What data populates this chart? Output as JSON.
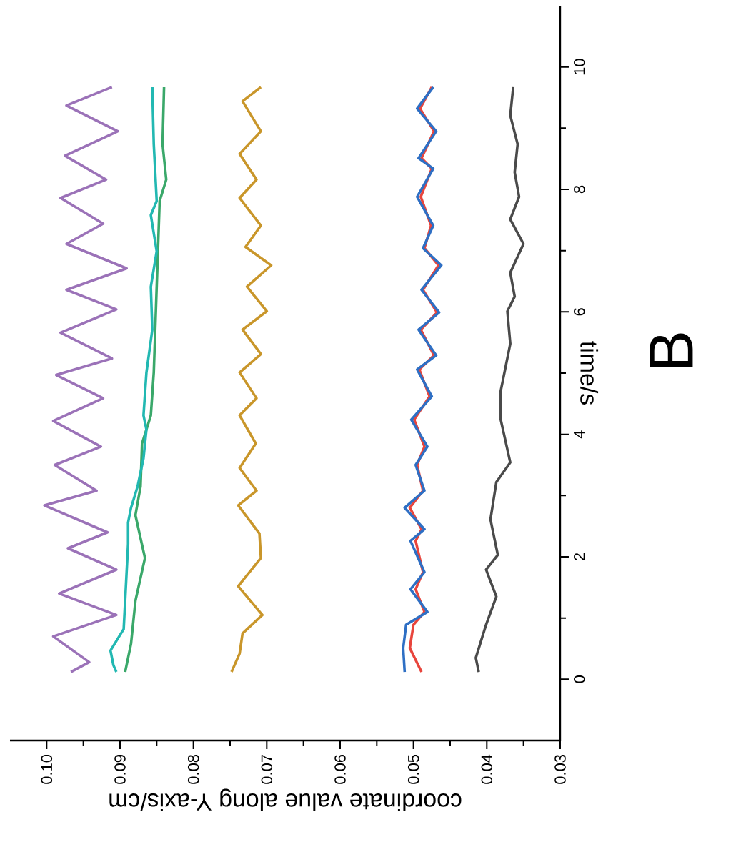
{
  "chart_data": {
    "type": "line",
    "xlabel": "coordinate value along Y-axis/cm",
    "ylabel": "time/s",
    "annotations": [
      "B"
    ],
    "ylim": [
      -1,
      11
    ],
    "yticks": [
      0,
      2,
      4,
      6,
      8,
      10
    ],
    "xlim": [
      0.105,
      0.03
    ],
    "xticks": [
      {
        "value": 0.03,
        "label": "0.03"
      },
      {
        "value": 0.04,
        "label": "0.04"
      },
      {
        "value": 0.05,
        "label": "0.05"
      },
      {
        "value": 0.06,
        "label": "0.06"
      },
      {
        "value": 0.07,
        "label": "0.07"
      },
      {
        "value": 0.08,
        "label": "0.08"
      },
      {
        "value": 0.09,
        "label": "0.09"
      },
      {
        "value": 0.1,
        "label": "0.10"
      }
    ],
    "series": [
      {
        "color": "#9b72b8",
        "values": [
          0.12,
          0.28,
          0.7,
          1.05,
          1.4,
          1.79,
          2.14,
          2.4,
          2.84,
          3.08,
          3.5,
          3.8,
          4.22,
          4.59,
          4.97,
          5.24,
          5.66,
          6.04,
          6.36,
          6.71,
          7.11,
          7.44,
          7.86,
          8.16,
          8.55,
          8.95,
          9.37,
          9.67
        ],
        "x": [
          0.0967,
          0.0942,
          0.0991,
          0.0905,
          0.0983,
          0.0905,
          0.0971,
          0.0917,
          0.1003,
          0.0932,
          0.0989,
          0.0926,
          0.0991,
          0.0923,
          0.0987,
          0.0911,
          0.0981,
          0.0905,
          0.0973,
          0.0891,
          0.0973,
          0.0923,
          0.0981,
          0.0919,
          0.0975,
          0.0903,
          0.0973,
          0.0911
        ]
      },
      {
        "color": "#3aa86a",
        "values": [
          0.12,
          0.58,
          1.28,
          1.98,
          2.68,
          3.15,
          3.85,
          4.31,
          5.01,
          5.71,
          6.41,
          7.11,
          7.81,
          8.16,
          8.74,
          9.67
        ],
        "x": [
          0.0893,
          0.0885,
          0.0879,
          0.0866,
          0.0879,
          0.0872,
          0.087,
          0.0858,
          0.0854,
          0.0852,
          0.085,
          0.0848,
          0.0846,
          0.0837,
          0.0842,
          0.084
        ]
      },
      {
        "color": "#22b8b2",
        "values": [
          0.12,
          0.23,
          0.47,
          0.82,
          1.28,
          1.75,
          2.21,
          2.56,
          2.8,
          3.15,
          3.61,
          4.08,
          4.31,
          5.01,
          5.71,
          6.41,
          6.99,
          7.58,
          7.81,
          8.74,
          9.67
        ],
        "x": [
          0.0905,
          0.0909,
          0.0913,
          0.0895,
          0.0893,
          0.0891,
          0.0889,
          0.0889,
          0.0885,
          0.0876,
          0.0868,
          0.0864,
          0.0868,
          0.0864,
          0.0856,
          0.0858,
          0.085,
          0.0858,
          0.085,
          0.0854,
          0.0856
        ]
      },
      {
        "color": "#c9962a",
        "values": [
          0.12,
          0.42,
          0.75,
          1.05,
          1.52,
          1.98,
          2.38,
          2.84,
          3.08,
          3.45,
          3.85,
          4.31,
          4.59,
          5.01,
          5.31,
          5.71,
          6.01,
          6.41,
          6.76,
          7.06,
          7.41,
          7.86,
          8.16,
          8.58,
          8.95,
          9.44,
          9.67
        ],
        "x": [
          0.0748,
          0.0737,
          0.0733,
          0.0706,
          0.0739,
          0.0708,
          0.071,
          0.0739,
          0.0714,
          0.0737,
          0.0715,
          0.0737,
          0.0714,
          0.0737,
          0.0708,
          0.0733,
          0.07,
          0.0727,
          0.0694,
          0.0729,
          0.0708,
          0.0737,
          0.0714,
          0.0737,
          0.0708,
          0.0733,
          0.0708
        ]
      },
      {
        "color": "#e8453c",
        "values": [
          0.12,
          0.51,
          0.89,
          1.1,
          1.47,
          1.75,
          2.26,
          2.45,
          2.8,
          3.08,
          3.5,
          3.8,
          4.24,
          4.62,
          5.06,
          5.29,
          5.71,
          5.99,
          6.36,
          6.76,
          7.04,
          7.41,
          7.88,
          8.34,
          8.51,
          8.95,
          9.32,
          9.67
        ],
        "x": [
          0.0489,
          0.0505,
          0.05,
          0.0485,
          0.0497,
          0.0487,
          0.0497,
          0.0489,
          0.0505,
          0.0487,
          0.0495,
          0.0485,
          0.0499,
          0.0478,
          0.0492,
          0.0472,
          0.049,
          0.0468,
          0.0487,
          0.0466,
          0.0485,
          0.0476,
          0.049,
          0.0475,
          0.0489,
          0.0472,
          0.0491,
          0.0475
        ]
      },
      {
        "color": "#2e6fc4",
        "values": [
          0.12,
          0.51,
          0.89,
          1.1,
          1.47,
          1.75,
          2.26,
          2.45,
          2.8,
          3.08,
          3.5,
          3.8,
          4.24,
          4.62,
          5.06,
          5.29,
          5.71,
          5.99,
          6.36,
          6.76,
          7.04,
          7.41,
          7.88,
          8.34,
          8.51,
          8.95,
          9.32,
          9.67
        ],
        "x": [
          0.0512,
          0.0514,
          0.051,
          0.0481,
          0.0504,
          0.0485,
          0.0504,
          0.0485,
          0.0512,
          0.0485,
          0.0497,
          0.0481,
          0.0503,
          0.0475,
          0.0495,
          0.0469,
          0.0493,
          0.0465,
          0.0489,
          0.0462,
          0.0487,
          0.0473,
          0.0495,
          0.0473,
          0.0493,
          0.0469,
          0.0495,
          0.0473
        ]
      },
      {
        "color": "#4a4a4a",
        "values": [
          0.12,
          0.35,
          0.89,
          1.35,
          1.79,
          2.03,
          2.61,
          3.22,
          3.54,
          4.24,
          4.71,
          5.48,
          6.01,
          6.25,
          6.64,
          7.11,
          7.51,
          7.88,
          8.28,
          8.74,
          9.21,
          9.67
        ],
        "x": [
          0.0411,
          0.0415,
          0.0401,
          0.0387,
          0.0401,
          0.0385,
          0.0395,
          0.0387,
          0.0368,
          0.0381,
          0.0381,
          0.0368,
          0.0372,
          0.0362,
          0.0368,
          0.035,
          0.0368,
          0.0356,
          0.0362,
          0.0358,
          0.0368,
          0.0364
        ]
      }
    ]
  }
}
